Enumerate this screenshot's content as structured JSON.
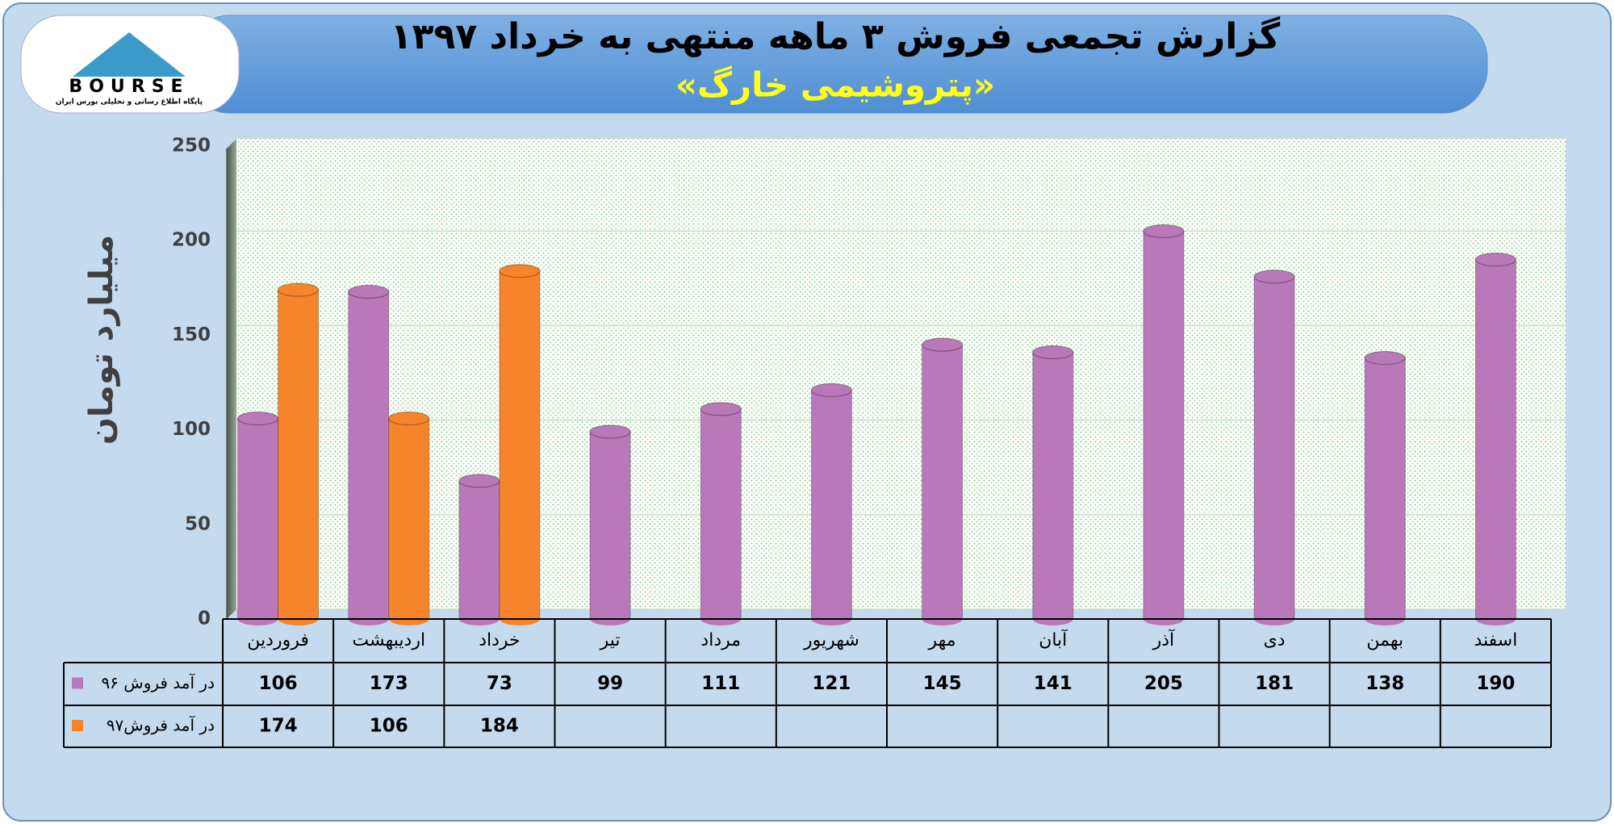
{
  "logo": {
    "text": "BOURSE",
    "subtitle": "پایگاه اطلاع رسانی و تحلیلی بورس ایران"
  },
  "chart_data": {
    "type": "bar",
    "title": "گزارش تجمعی فروش ۳ ماهه منتهی به خرداد ۱۳۹۷",
    "subtitle": "«پتروشیمی خارگ»",
    "y_label": "میلیارد تومان",
    "categories": [
      "فروردین",
      "اردیبهشت",
      "خرداد",
      "تیر",
      "مرداد",
      "شهریور",
      "مهر",
      "آبان",
      "آذر",
      "دی",
      "بهمن",
      "اسفند"
    ],
    "series": [
      {
        "name": "در آمد فروش ۹۶",
        "color": "#b978b8",
        "values": [
          106,
          173,
          73,
          99,
          111,
          121,
          145,
          141,
          205,
          181,
          138,
          190
        ]
      },
      {
        "name": "در آمد فروش۹۷",
        "color": "#f5842a",
        "values": [
          174,
          106,
          184,
          null,
          null,
          null,
          null,
          null,
          null,
          null,
          null,
          null
        ]
      }
    ],
    "ylim": [
      0,
      250
    ],
    "yticks": [
      0,
      50,
      100,
      150,
      200,
      250
    ],
    "grid": true
  }
}
